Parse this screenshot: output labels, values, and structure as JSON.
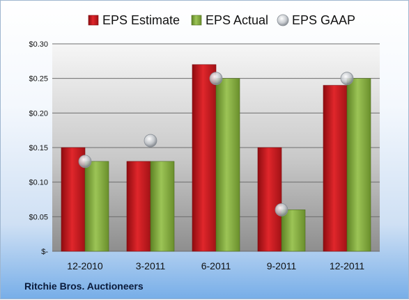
{
  "company_name": "Ritchie Bros. Auctioneers",
  "colors": {
    "estimate": "#c8181d",
    "actual": "#7faa3a",
    "gaap": "#b8bcc2"
  },
  "chart_data": {
    "type": "bar",
    "categories": [
      "12-2010",
      "3-2011",
      "6-2011",
      "9-2011",
      "12-2011"
    ],
    "series": [
      {
        "name": "EPS Estimate",
        "kind": "bar",
        "values": [
          0.15,
          0.13,
          0.27,
          0.15,
          0.24
        ]
      },
      {
        "name": "EPS Actual",
        "kind": "bar",
        "values": [
          0.13,
          0.13,
          0.25,
          0.06,
          0.25
        ]
      },
      {
        "name": "EPS GAAP",
        "kind": "scatter",
        "values": [
          0.13,
          0.16,
          0.25,
          0.06,
          0.25
        ]
      }
    ],
    "ylim": [
      0,
      0.3
    ],
    "yticks": [
      0,
      0.05,
      0.1,
      0.15,
      0.2,
      0.25,
      0.3
    ],
    "ytick_labels": [
      "$-",
      "$0.05",
      "$0.10",
      "$0.15",
      "$0.20",
      "$0.25",
      "$0.30"
    ],
    "grid": true,
    "legend_position": "top"
  }
}
